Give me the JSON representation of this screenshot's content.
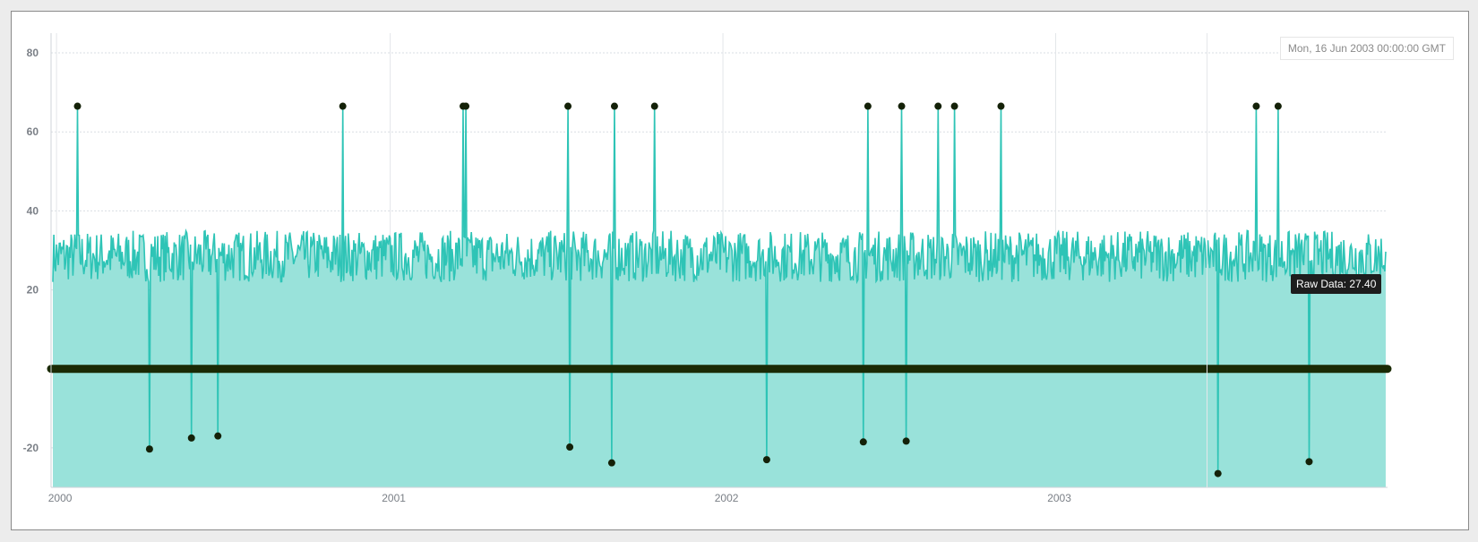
{
  "chart_data": {
    "type": "line",
    "series": [
      {
        "values_note_free": true,
        "baseline_range": [
          21,
          35
        ],
        "fill_color": "#99e2da",
        "line_color": "#2ec4b6"
      }
    ],
    "x_axis": {
      "ticks": [
        "2000",
        "2001",
        "2002",
        "2003"
      ],
      "range": [
        "1999-12-26",
        "2003-12-31"
      ]
    },
    "y_axis": {
      "ticks": [
        "80",
        "60",
        "40",
        "20",
        "-20"
      ],
      "range": [
        -30,
        85
      ]
    },
    "grid": true,
    "anomalies": [
      {
        "date": "2000-01-24",
        "value": 66.5
      },
      {
        "date": "2000-04-12",
        "value": -20.3
      },
      {
        "date": "2000-05-28",
        "value": -17.5
      },
      {
        "date": "2000-06-26",
        "value": -17.0
      },
      {
        "date": "2000-11-10",
        "value": 66.5
      },
      {
        "date": "2001-03-22",
        "value": 66.5
      },
      {
        "date": "2001-03-25",
        "value": 66.5
      },
      {
        "date": "2001-07-15",
        "value": 66.5
      },
      {
        "date": "2001-07-17",
        "value": -19.8
      },
      {
        "date": "2001-09-04",
        "value": 66.5
      },
      {
        "date": "2001-09-01",
        "value": -23.8
      },
      {
        "date": "2001-10-18",
        "value": 66.5
      },
      {
        "date": "2002-02-18",
        "value": -23.0
      },
      {
        "date": "2002-06-04",
        "value": -18.5
      },
      {
        "date": "2002-06-09",
        "value": 66.5
      },
      {
        "date": "2002-07-16",
        "value": 66.5
      },
      {
        "date": "2002-07-21",
        "value": -18.3
      },
      {
        "date": "2002-08-25",
        "value": 66.5
      },
      {
        "date": "2002-09-12",
        "value": 66.5
      },
      {
        "date": "2002-11-02",
        "value": 66.5
      },
      {
        "date": "2003-06-28",
        "value": -26.5
      },
      {
        "date": "2003-08-09",
        "value": 66.5
      },
      {
        "date": "2003-09-02",
        "value": 66.5
      },
      {
        "date": "2003-10-06",
        "value": -23.5
      }
    ],
    "zero_marker_line": {
      "value": 0,
      "color": "#1a2a05"
    },
    "hover": {
      "date_label": "Mon, 16 Jun 2003 00:00:00 GMT",
      "tooltip": "Raw Data: 27.40"
    }
  }
}
